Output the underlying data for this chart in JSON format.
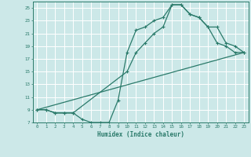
{
  "xlabel": "Humidex (Indice chaleur)",
  "bg_color": "#cce8e8",
  "grid_color": "#ffffff",
  "line_color": "#2a7a6a",
  "line1_x": [
    0,
    1,
    2,
    3,
    4,
    5,
    6,
    7,
    8,
    9,
    10,
    11,
    12,
    13,
    14,
    15,
    16,
    17,
    18,
    19,
    20,
    21,
    22,
    23
  ],
  "line1_y": [
    9,
    9,
    8.5,
    8.5,
    8.5,
    7.5,
    7,
    7,
    7,
    10.5,
    18,
    21.5,
    22,
    23,
    23.5,
    25.5,
    25.5,
    24,
    23.5,
    22,
    19.5,
    19,
    18,
    18
  ],
  "line2_x": [
    0,
    1,
    2,
    3,
    4,
    10,
    11,
    12,
    13,
    14,
    15,
    16,
    17,
    18,
    19,
    20,
    21,
    22,
    23
  ],
  "line2_y": [
    9,
    9,
    8.5,
    8.5,
    8.5,
    15,
    18,
    19.5,
    21,
    22,
    25.5,
    25.5,
    24,
    23.5,
    22,
    22,
    19.5,
    19,
    18
  ],
  "line3_x": [
    0,
    23
  ],
  "line3_y": [
    9,
    18
  ],
  "xmin": -0.5,
  "xmax": 23.5,
  "ymin": 7,
  "ymax": 26,
  "xticks": [
    0,
    1,
    2,
    3,
    4,
    5,
    6,
    7,
    8,
    9,
    10,
    11,
    12,
    13,
    14,
    15,
    16,
    17,
    18,
    19,
    20,
    21,
    22,
    23
  ],
  "yticks": [
    7,
    9,
    11,
    13,
    15,
    17,
    19,
    21,
    23,
    25
  ]
}
